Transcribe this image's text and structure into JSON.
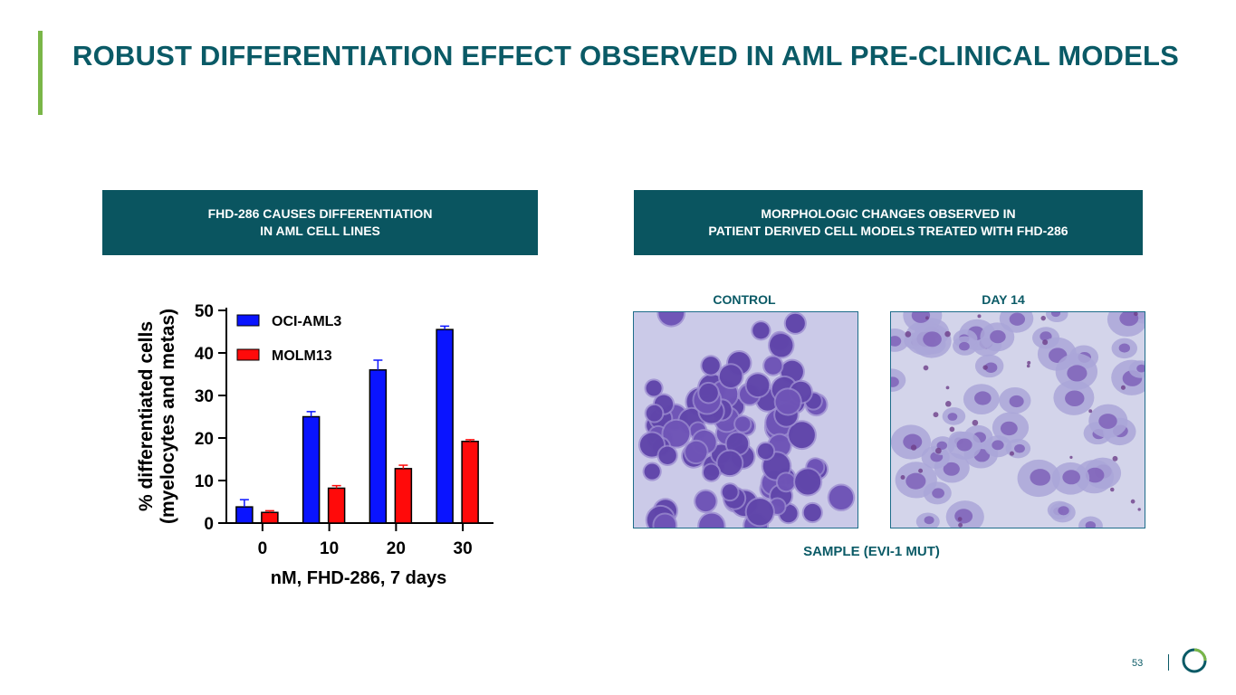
{
  "slide": {
    "title": "ROBUST DIFFERENTIATION EFFECT OBSERVED IN AML PRE-CLINICAL MODELS",
    "page_number": "53",
    "accent_color": "#7ab648",
    "brand_color": "#0a5a66",
    "logo_icon": "circular-ring-logo-icon"
  },
  "left_panel": {
    "banner_line1": "FHD-286 CAUSES DIFFERENTIATION",
    "banner_line2": "IN AML CELL LINES"
  },
  "right_panel": {
    "banner_line1": "MORPHOLOGIC CHANGES OBSERVED IN",
    "banner_line2": "PATIENT DERIVED CELL MODELS TREATED WITH FHD-286",
    "control_label": "CONTROL",
    "day14_label": "DAY 14",
    "caption": "SAMPLE (EVI-1 MUT)"
  },
  "chart_data": {
    "type": "bar",
    "title": "",
    "xlabel": "nM, FHD-286, 7 days",
    "ylabel_line1": "% differentiated cells",
    "ylabel_line2": "(myelocytes and metas)",
    "categories": [
      "0",
      "10",
      "20",
      "30"
    ],
    "ylim": [
      0,
      50
    ],
    "yticks": [
      0,
      10,
      20,
      30,
      40,
      50
    ],
    "ytick_labels": [
      "0",
      "10",
      "20",
      "30",
      "40",
      "50"
    ],
    "legend_position": "top-left",
    "series": [
      {
        "name": "OCI-AML3",
        "color": "#0a14ff",
        "values": [
          3.8,
          25,
          36,
          45.5
        ],
        "errors": [
          1.7,
          1.2,
          2.3,
          0.8
        ]
      },
      {
        "name": "MOLM13",
        "color": "#ff0a0a",
        "values": [
          2.5,
          8.2,
          12.8,
          19.2
        ],
        "errors": [
          0.4,
          0.6,
          0.8,
          0.4
        ]
      }
    ]
  }
}
